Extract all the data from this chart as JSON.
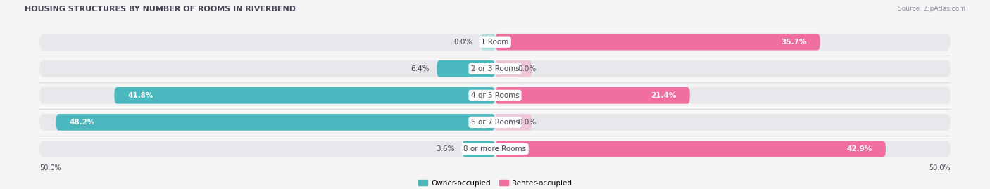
{
  "title": "HOUSING STRUCTURES BY NUMBER OF ROOMS IN RIVERBEND",
  "source": "Source: ZipAtlas.com",
  "categories": [
    "1 Room",
    "2 or 3 Rooms",
    "4 or 5 Rooms",
    "6 or 7 Rooms",
    "8 or more Rooms"
  ],
  "owner_values": [
    0.0,
    6.4,
    41.8,
    48.2,
    3.6
  ],
  "renter_values": [
    35.7,
    0.0,
    21.4,
    0.0,
    42.9
  ],
  "renter_small_values": [
    0.0,
    5.0,
    0.0,
    5.0,
    0.0
  ],
  "owner_color": "#4bb8c0",
  "owner_color_light": "#7dd4d8",
  "renter_color": "#f06fa0",
  "renter_color_light": "#f5a8c5",
  "owner_label": "Owner-occupied",
  "renter_label": "Renter-occupied",
  "axis_label_left": "50.0%",
  "axis_label_right": "50.0%",
  "max_val": 50.0,
  "bg_color": "#f5f5f5",
  "bar_bg_color": "#e8e8ec",
  "row_sep_color": "#d8d8de",
  "label_color_dark": "#444455",
  "label_color_white": "#ffffff",
  "category_label_bg": "#ffffff",
  "category_label_color": "#444455",
  "title_color": "#444455",
  "source_color": "#888899"
}
